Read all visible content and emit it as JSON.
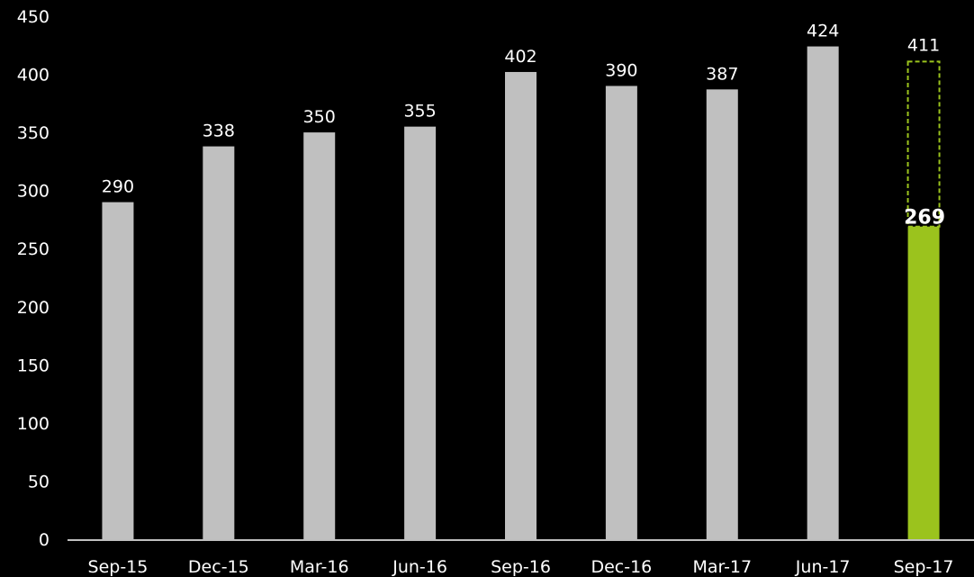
{
  "chart_data": {
    "type": "bar",
    "categories": [
      "Sep-15",
      "Dec-15",
      "Mar-16",
      "Jun-16",
      "Sep-16",
      "Dec-16",
      "Mar-17",
      "Jun-17",
      "Sep-17"
    ],
    "values": [
      290,
      338,
      350,
      355,
      402,
      390,
      387,
      424,
      269
    ],
    "target": {
      "category": "Sep-17",
      "value": 411
    },
    "ylim": [
      0,
      450
    ],
    "yticks": [
      0,
      50,
      100,
      150,
      200,
      250,
      300,
      350,
      400,
      450
    ],
    "title": "",
    "xlabel": "",
    "ylabel": "",
    "grid": false,
    "colors": {
      "background": "#000000",
      "bar": "#c0c0c0",
      "highlight_bar": "#9bc31d",
      "target_outline": "#9bc31d",
      "axis": "#bfbfbf",
      "text": "#ffffff"
    }
  }
}
